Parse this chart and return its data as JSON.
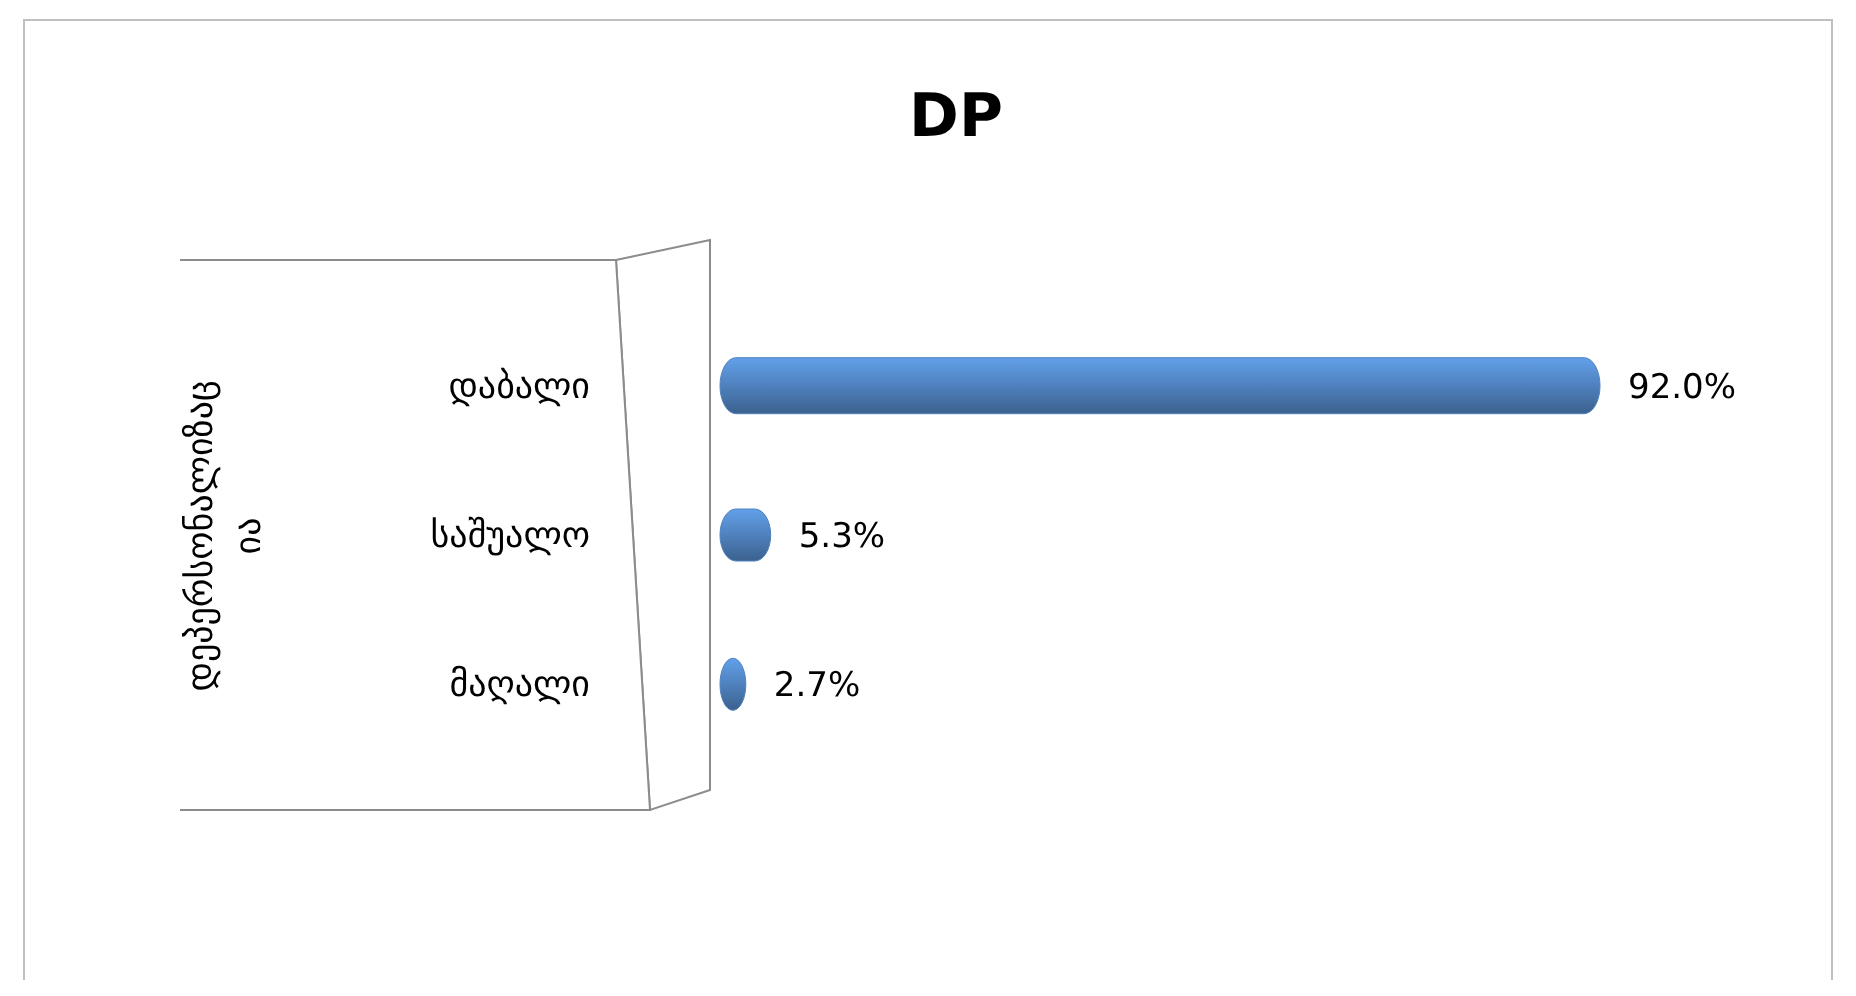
{
  "chart_data": {
    "type": "bar",
    "orientation": "horizontal",
    "title": "DP",
    "ylabel": "დეპერსონალიზაც ია",
    "categories": [
      "დაბალი",
      "საშუალო",
      "მაღალი"
    ],
    "values": [
      92.0,
      5.3,
      2.7
    ],
    "color": "#4f81bd",
    "value_labels": [
      "92.0%",
      "5.3%",
      "2.7%"
    ]
  }
}
